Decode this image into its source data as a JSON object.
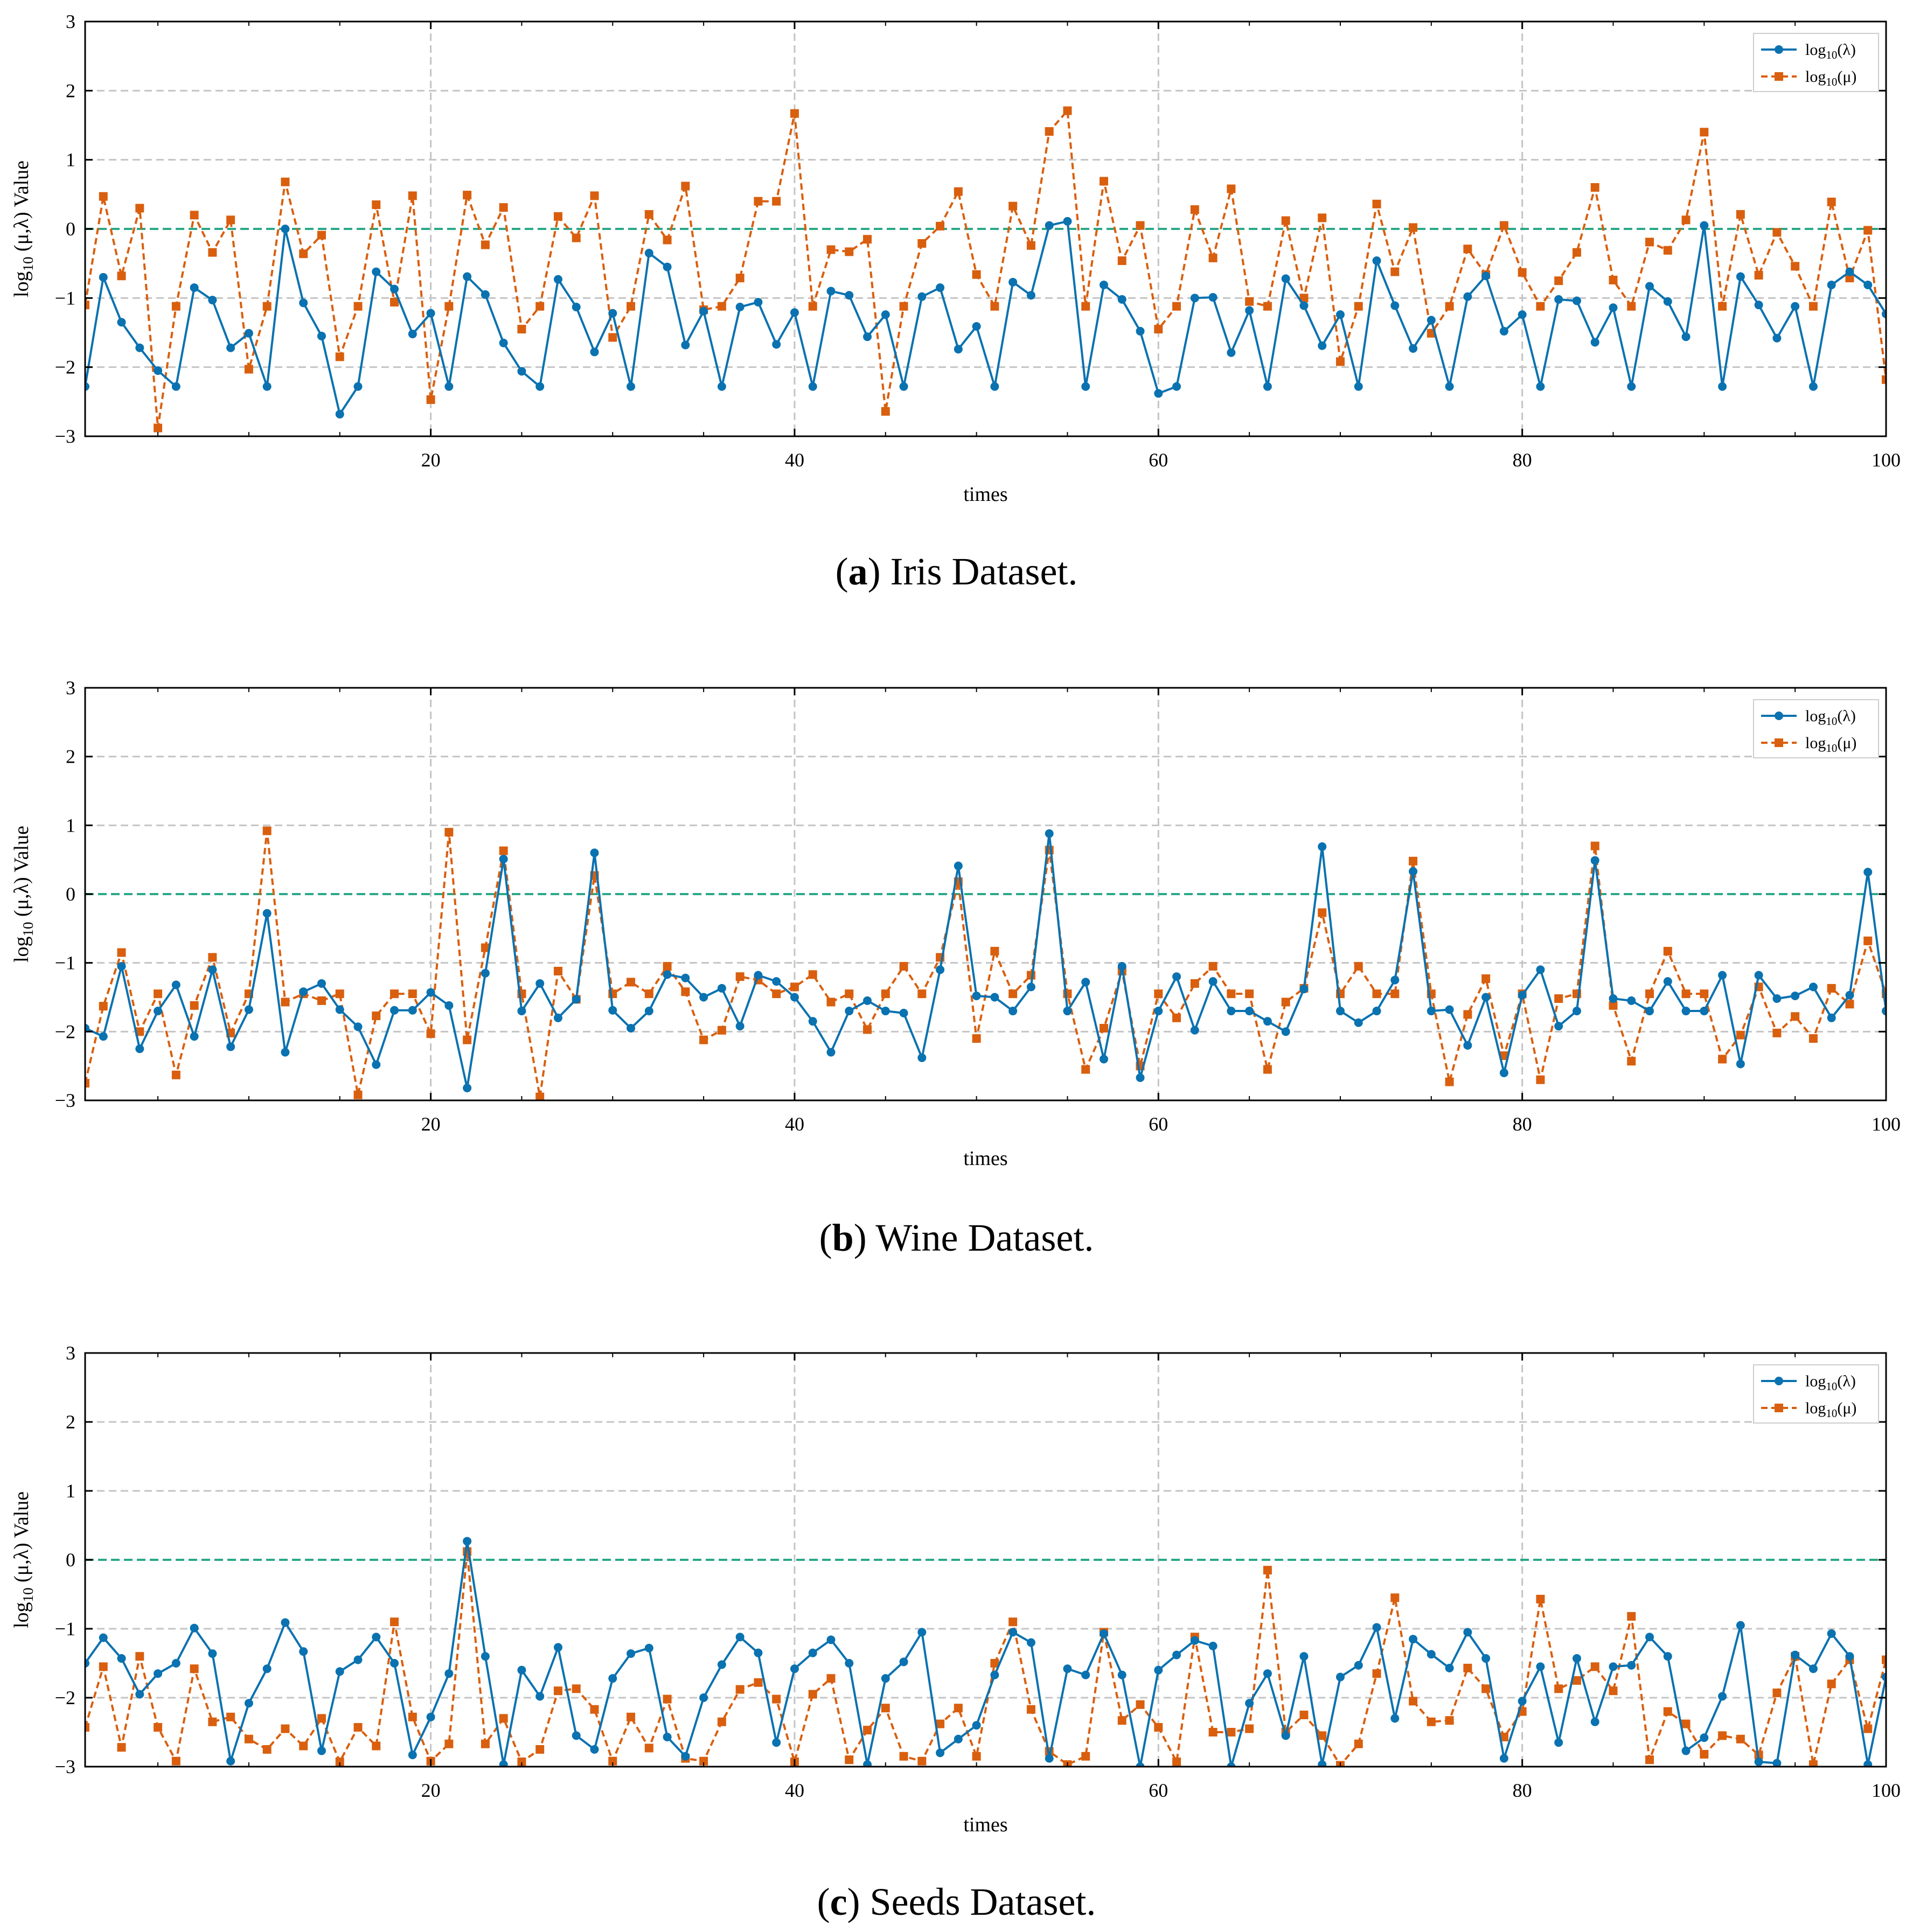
{
  "legend": {
    "lambda_label": "log",
    "lambda_sub": "10",
    "lambda_arg": "(λ)",
    "mu_label": "log",
    "mu_sub": "10",
    "mu_arg": "(μ)"
  },
  "colors": {
    "lambda": "#0a72b0",
    "mu": "#d95f0e",
    "zero_line": "#2aa889",
    "grid": "#c4c4c4",
    "axis": "#000000"
  },
  "chart_data": [
    {
      "type": "line",
      "caption_letter": "a",
      "caption_open": "(",
      "caption_close": ")",
      "caption_text": " Iris Dataset.",
      "xlabel": "times",
      "ylabel": "log10 (μ,λ) Value",
      "ylabel_main": "log",
      "ylabel_sub": "10",
      "ylabel_rest": " (μ,λ) Value",
      "xlim": [
        1,
        100
      ],
      "ylim": [
        -3,
        3
      ],
      "xticks": [
        20,
        40,
        60,
        80,
        100
      ],
      "yticks": [
        -3,
        -2,
        -1,
        0,
        1,
        2,
        3
      ],
      "x": [
        1,
        2,
        3,
        4,
        5,
        6,
        7,
        8,
        9,
        10,
        11,
        12,
        13,
        14,
        15,
        16,
        17,
        18,
        19,
        20,
        21,
        22,
        23,
        24,
        25,
        26,
        27,
        28,
        29,
        30,
        31,
        32,
        33,
        34,
        35,
        36,
        37,
        38,
        39,
        40,
        41,
        42,
        43,
        44,
        45,
        46,
        47,
        48,
        49,
        50,
        51,
        52,
        53,
        54,
        55,
        56,
        57,
        58,
        59,
        60,
        61,
        62,
        63,
        64,
        65,
        66,
        67,
        68,
        69,
        70,
        71,
        72,
        73,
        74,
        75,
        76,
        77,
        78,
        79,
        80,
        81,
        82,
        83,
        84,
        85,
        86,
        87,
        88,
        89,
        90,
        91,
        92,
        93,
        94,
        95,
        96,
        97,
        98,
        99,
        100
      ],
      "series": [
        {
          "name": "log10(λ)",
          "marker": "circle",
          "values": [
            -2.28,
            -0.7,
            -1.35,
            -1.72,
            -2.05,
            -2.28,
            -0.85,
            -1.03,
            -1.72,
            -1.51,
            -2.28,
            0.0,
            -1.07,
            -1.55,
            -2.68,
            -2.28,
            -0.62,
            -0.87,
            -1.52,
            -1.22,
            -2.28,
            -0.69,
            -0.95,
            -1.65,
            -2.06,
            -2.28,
            -0.73,
            -1.13,
            -1.78,
            -1.22,
            -2.28,
            -0.35,
            -0.55,
            -1.68,
            -1.19,
            -2.28,
            -1.13,
            -1.06,
            -1.67,
            -1.21,
            -2.28,
            -0.9,
            -0.96,
            -1.56,
            -1.24,
            -2.28,
            -0.98,
            -0.85,
            -1.74,
            -1.41,
            -2.28,
            -0.77,
            -0.96,
            0.05,
            0.11,
            -2.28,
            -0.81,
            -1.02,
            -1.48,
            -2.38,
            -2.28,
            -1.0,
            -0.99,
            -1.79,
            -1.18,
            -2.28,
            -0.72,
            -1.11,
            -1.69,
            -1.24,
            -2.28,
            -0.46,
            -1.11,
            -1.73,
            -1.32,
            -2.28,
            -0.98,
            -0.68,
            -1.48,
            -1.24,
            -2.28,
            -1.02,
            -1.04,
            -1.64,
            -1.14,
            -2.28,
            -0.83,
            -1.05,
            -1.56,
            0.05,
            -2.28,
            -0.69,
            -1.1,
            -1.58,
            -1.12,
            -2.28,
            -0.81,
            -0.62,
            -0.81,
            -1.23
          ]
        },
        {
          "name": "log10(μ)",
          "marker": "square",
          "values": [
            -1.1,
            0.47,
            -0.68,
            0.3,
            -2.88,
            -1.12,
            0.2,
            -0.34,
            0.13,
            -2.03,
            -1.12,
            0.68,
            -0.36,
            -0.09,
            -1.85,
            -1.12,
            0.35,
            -1.06,
            0.48,
            -2.47,
            -1.12,
            0.49,
            -0.23,
            0.31,
            -1.45,
            -1.12,
            0.18,
            -0.13,
            0.48,
            -1.57,
            -1.12,
            0.21,
            -0.16,
            0.62,
            -1.17,
            -1.12,
            -0.71,
            0.4,
            0.4,
            1.67,
            -1.12,
            -0.3,
            -0.33,
            -0.15,
            -2.64,
            -1.12,
            -0.21,
            0.04,
            0.54,
            -0.66,
            -1.12,
            0.33,
            -0.24,
            1.41,
            1.71,
            -1.12,
            0.69,
            -0.46,
            0.05,
            -1.45,
            -1.12,
            0.28,
            -0.42,
            0.58,
            -1.05,
            -1.12,
            0.12,
            -1.0,
            0.16,
            -1.92,
            -1.12,
            0.36,
            -0.62,
            0.02,
            -1.51,
            -1.12,
            -0.29,
            -0.66,
            0.05,
            -0.63,
            -1.12,
            -0.75,
            -0.34,
            0.6,
            -0.74,
            -1.12,
            -0.19,
            -0.31,
            0.13,
            1.4,
            -1.12,
            0.21,
            -0.67,
            -0.05,
            -0.54,
            -1.12,
            0.39,
            -0.71,
            -0.02,
            -2.18
          ]
        }
      ]
    },
    {
      "type": "line",
      "caption_letter": "b",
      "caption_open": "(",
      "caption_close": ")",
      "caption_text": " Wine Dataset.",
      "xlabel": "times",
      "ylabel": "log10 (μ,λ) Value",
      "ylabel_main": "log",
      "ylabel_sub": "10",
      "ylabel_rest": " (μ,λ) Value",
      "xlim": [
        1,
        100
      ],
      "ylim": [
        -3,
        3
      ],
      "xticks": [
        20,
        40,
        60,
        80,
        100
      ],
      "yticks": [
        -3,
        -2,
        -1,
        0,
        1,
        2,
        3
      ],
      "x": [
        1,
        2,
        3,
        4,
        5,
        6,
        7,
        8,
        9,
        10,
        11,
        12,
        13,
        14,
        15,
        16,
        17,
        18,
        19,
        20,
        21,
        22,
        23,
        24,
        25,
        26,
        27,
        28,
        29,
        30,
        31,
        32,
        33,
        34,
        35,
        36,
        37,
        38,
        39,
        40,
        41,
        42,
        43,
        44,
        45,
        46,
        47,
        48,
        49,
        50,
        51,
        52,
        53,
        54,
        55,
        56,
        57,
        58,
        59,
        60,
        61,
        62,
        63,
        64,
        65,
        66,
        67,
        68,
        69,
        70,
        71,
        72,
        73,
        74,
        75,
        76,
        77,
        78,
        79,
        80,
        81,
        82,
        83,
        84,
        85,
        86,
        87,
        88,
        89,
        90,
        91,
        92,
        93,
        94,
        95,
        96,
        97,
        98,
        99,
        100
      ],
      "series": [
        {
          "name": "log10(λ)",
          "marker": "circle",
          "values": [
            -1.95,
            -2.07,
            -1.05,
            -2.25,
            -1.7,
            -1.32,
            -2.07,
            -1.1,
            -2.22,
            -1.68,
            -0.28,
            -2.3,
            -1.42,
            -1.3,
            -1.68,
            -1.93,
            -2.48,
            -1.69,
            -1.69,
            -1.43,
            -1.62,
            -2.82,
            -1.15,
            0.51,
            -1.7,
            -1.3,
            -1.8,
            -1.53,
            0.6,
            -1.69,
            -1.95,
            -1.7,
            -1.17,
            -1.22,
            -1.5,
            -1.37,
            -1.92,
            -1.18,
            -1.27,
            -1.5,
            -1.85,
            -2.3,
            -1.7,
            -1.55,
            -1.7,
            -1.73,
            -2.38,
            -1.1,
            0.41,
            -1.48,
            -1.5,
            -1.7,
            -1.35,
            0.88,
            -1.7,
            -1.28,
            -2.4,
            -1.05,
            -2.67,
            -1.7,
            -1.2,
            -1.98,
            -1.27,
            -1.7,
            -1.7,
            -1.85,
            -2.0,
            -1.38,
            0.69,
            -1.7,
            -1.87,
            -1.7,
            -1.25,
            0.33,
            -1.7,
            -1.68,
            -2.2,
            -1.5,
            -2.6,
            -1.47,
            -1.1,
            -1.92,
            -1.7,
            0.49,
            -1.52,
            -1.55,
            -1.7,
            -1.27,
            -1.7,
            -1.7,
            -1.18,
            -2.47,
            -1.18,
            -1.52,
            -1.48,
            -1.35,
            -1.8,
            -1.47,
            0.32,
            -1.7
          ]
        },
        {
          "name": "log10(μ)",
          "marker": "square",
          "values": [
            -2.75,
            -1.63,
            -0.85,
            -2.0,
            -1.45,
            -2.63,
            -1.62,
            -0.92,
            -2.02,
            -1.45,
            0.92,
            -1.57,
            -1.45,
            -1.55,
            -1.45,
            -2.92,
            -1.77,
            -1.45,
            -1.45,
            -2.03,
            0.9,
            -2.12,
            -0.78,
            0.63,
            -1.45,
            -2.95,
            -1.12,
            -1.53,
            0.27,
            -1.45,
            -1.28,
            -1.45,
            -1.05,
            -1.42,
            -2.12,
            -1.98,
            -1.2,
            -1.25,
            -1.45,
            -1.35,
            -1.17,
            -1.57,
            -1.45,
            -1.97,
            -1.45,
            -1.05,
            -1.45,
            -0.92,
            0.18,
            -2.1,
            -0.83,
            -1.45,
            -1.18,
            0.64,
            -1.45,
            -2.55,
            -1.95,
            -1.12,
            -2.5,
            -1.45,
            -1.8,
            -1.3,
            -1.05,
            -1.45,
            -1.45,
            -2.55,
            -1.57,
            -1.37,
            -0.27,
            -1.45,
            -1.05,
            -1.45,
            -1.45,
            0.48,
            -1.45,
            -2.73,
            -1.75,
            -1.23,
            -2.35,
            -1.45,
            -2.7,
            -1.52,
            -1.45,
            0.7,
            -1.62,
            -2.43,
            -1.45,
            -0.83,
            -1.45,
            -1.45,
            -2.4,
            -2.05,
            -1.35,
            -2.02,
            -1.78,
            -2.1,
            -1.37,
            -1.6,
            -0.68,
            -1.45
          ]
        }
      ]
    },
    {
      "type": "line",
      "caption_letter": "c",
      "caption_open": "(",
      "caption_close": ")",
      "caption_text": " Seeds Dataset.",
      "xlabel": "times",
      "ylabel": "log10 (μ,λ) Value",
      "ylabel_main": "log",
      "ylabel_sub": "10",
      "ylabel_rest": " (μ,λ) Value",
      "xlim": [
        1,
        100
      ],
      "ylim": [
        -3,
        3
      ],
      "xticks": [
        20,
        40,
        60,
        80,
        100
      ],
      "yticks": [
        -3,
        -2,
        -1,
        0,
        1,
        2,
        3
      ],
      "x": [
        1,
        2,
        3,
        4,
        5,
        6,
        7,
        8,
        9,
        10,
        11,
        12,
        13,
        14,
        15,
        16,
        17,
        18,
        19,
        20,
        21,
        22,
        23,
        24,
        25,
        26,
        27,
        28,
        29,
        30,
        31,
        32,
        33,
        34,
        35,
        36,
        37,
        38,
        39,
        40,
        41,
        42,
        43,
        44,
        45,
        46,
        47,
        48,
        49,
        50,
        51,
        52,
        53,
        54,
        55,
        56,
        57,
        58,
        59,
        60,
        61,
        62,
        63,
        64,
        65,
        66,
        67,
        68,
        69,
        70,
        71,
        72,
        73,
        74,
        75,
        76,
        77,
        78,
        79,
        80,
        81,
        82,
        83,
        84,
        85,
        86,
        87,
        88,
        89,
        90,
        91,
        92,
        93,
        94,
        95,
        96,
        97,
        98,
        99,
        100
      ],
      "series": [
        {
          "name": "log10(λ)",
          "marker": "circle",
          "values": [
            -1.5,
            -1.13,
            -1.43,
            -1.95,
            -1.65,
            -1.5,
            -0.99,
            -1.36,
            -2.92,
            -2.08,
            -1.58,
            -0.91,
            -1.33,
            -2.77,
            -1.62,
            -1.45,
            -1.12,
            -1.5,
            -2.83,
            -2.28,
            -1.65,
            0.27,
            -1.4,
            -2.97,
            -1.6,
            -1.98,
            -1.27,
            -2.55,
            -2.75,
            -1.72,
            -1.36,
            -1.28,
            -2.57,
            -2.85,
            -2.0,
            -1.52,
            -1.12,
            -1.35,
            -2.65,
            -1.58,
            -1.35,
            -1.16,
            -1.5,
            -2.97,
            -1.72,
            -1.48,
            -1.05,
            -2.8,
            -2.6,
            -2.4,
            -1.67,
            -1.05,
            -1.2,
            -2.88,
            -1.58,
            -1.67,
            -1.07,
            -1.67,
            -3.0,
            -1.6,
            -1.38,
            -1.17,
            -1.25,
            -3.0,
            -2.08,
            -1.65,
            -2.55,
            -1.4,
            -2.97,
            -1.7,
            -1.53,
            -0.98,
            -2.3,
            -1.15,
            -1.37,
            -1.57,
            -1.05,
            -1.43,
            -2.88,
            -2.05,
            -1.55,
            -2.65,
            -1.43,
            -2.35,
            -1.55,
            -1.53,
            -1.12,
            -1.4,
            -2.77,
            -2.58,
            -1.98,
            -0.95,
            -2.93,
            -2.95,
            -1.38,
            -1.58,
            -1.07,
            -1.4,
            -2.97,
            -1.7
          ]
        },
        {
          "name": "log10(μ)",
          "marker": "square",
          "values": [
            -2.43,
            -1.55,
            -2.72,
            -1.4,
            -2.43,
            -2.92,
            -1.58,
            -2.35,
            -2.28,
            -2.6,
            -2.75,
            -2.45,
            -2.7,
            -2.3,
            -2.93,
            -2.43,
            -2.7,
            -0.9,
            -2.28,
            -2.92,
            -2.67,
            0.12,
            -2.67,
            -2.3,
            -2.93,
            -2.75,
            -1.9,
            -1.87,
            -2.17,
            -2.92,
            -2.28,
            -2.73,
            -2.02,
            -2.88,
            -2.92,
            -2.35,
            -1.88,
            -1.78,
            -2.02,
            -2.93,
            -1.95,
            -1.72,
            -2.9,
            -2.47,
            -2.15,
            -2.85,
            -2.92,
            -2.38,
            -2.15,
            -2.85,
            -1.5,
            -0.9,
            -2.17,
            -2.78,
            -2.97,
            -2.85,
            -1.05,
            -2.33,
            -2.1,
            -2.43,
            -2.93,
            -1.12,
            -2.5,
            -2.5,
            -2.45,
            -0.15,
            -2.5,
            -2.25,
            -2.55,
            -2.98,
            -2.67,
            -1.65,
            -0.55,
            -2.05,
            -2.35,
            -2.33,
            -1.57,
            -1.87,
            -2.57,
            -2.2,
            -0.57,
            -1.87,
            -1.75,
            -1.55,
            -1.9,
            -0.82,
            -2.9,
            -2.2,
            -2.38,
            -2.82,
            -2.55,
            -2.6,
            -2.83,
            -1.93,
            -1.4,
            -2.97,
            -1.8,
            -1.45,
            -2.45,
            -1.45
          ]
        }
      ]
    }
  ]
}
